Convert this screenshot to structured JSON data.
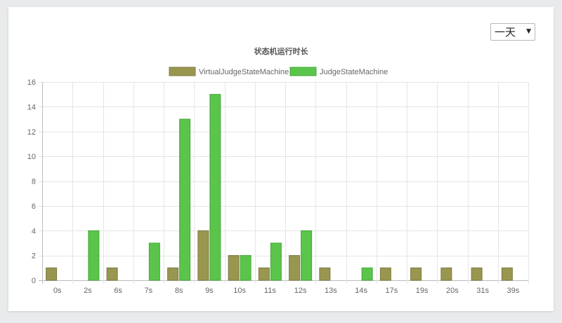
{
  "filter": {
    "selected": "一天",
    "arrow_icon": "triangle-down-icon"
  },
  "colors": {
    "virtual": "#999650",
    "virtual_border": "#7c7a42",
    "judge": "#5bc44b",
    "judge_border": "#45a838",
    "grid": "#e5e5e5",
    "axis": "#bbbbbb"
  },
  "chart_data": {
    "type": "bar",
    "title": "状态机运行时长",
    "categories": [
      "0s",
      "2s",
      "6s",
      "7s",
      "8s",
      "9s",
      "10s",
      "11s",
      "12s",
      "13s",
      "14s",
      "17s",
      "19s",
      "20s",
      "31s",
      "39s"
    ],
    "series": [
      {
        "name": "VirtualJudgeStateMachine",
        "values": [
          1,
          0,
          1,
          0,
          1,
          4,
          2,
          1,
          2,
          1,
          0,
          1,
          1,
          1,
          1,
          1
        ]
      },
      {
        "name": "JudgeStateMachine",
        "values": [
          0,
          4,
          0,
          3,
          13,
          15,
          2,
          3,
          4,
          0,
          1,
          0,
          0,
          0,
          0,
          0
        ]
      }
    ],
    "ylim": [
      0,
      16
    ],
    "yticks": [
      0,
      2,
      4,
      6,
      8,
      10,
      12,
      14,
      16
    ],
    "grid": true,
    "legend_position": "top-center"
  }
}
